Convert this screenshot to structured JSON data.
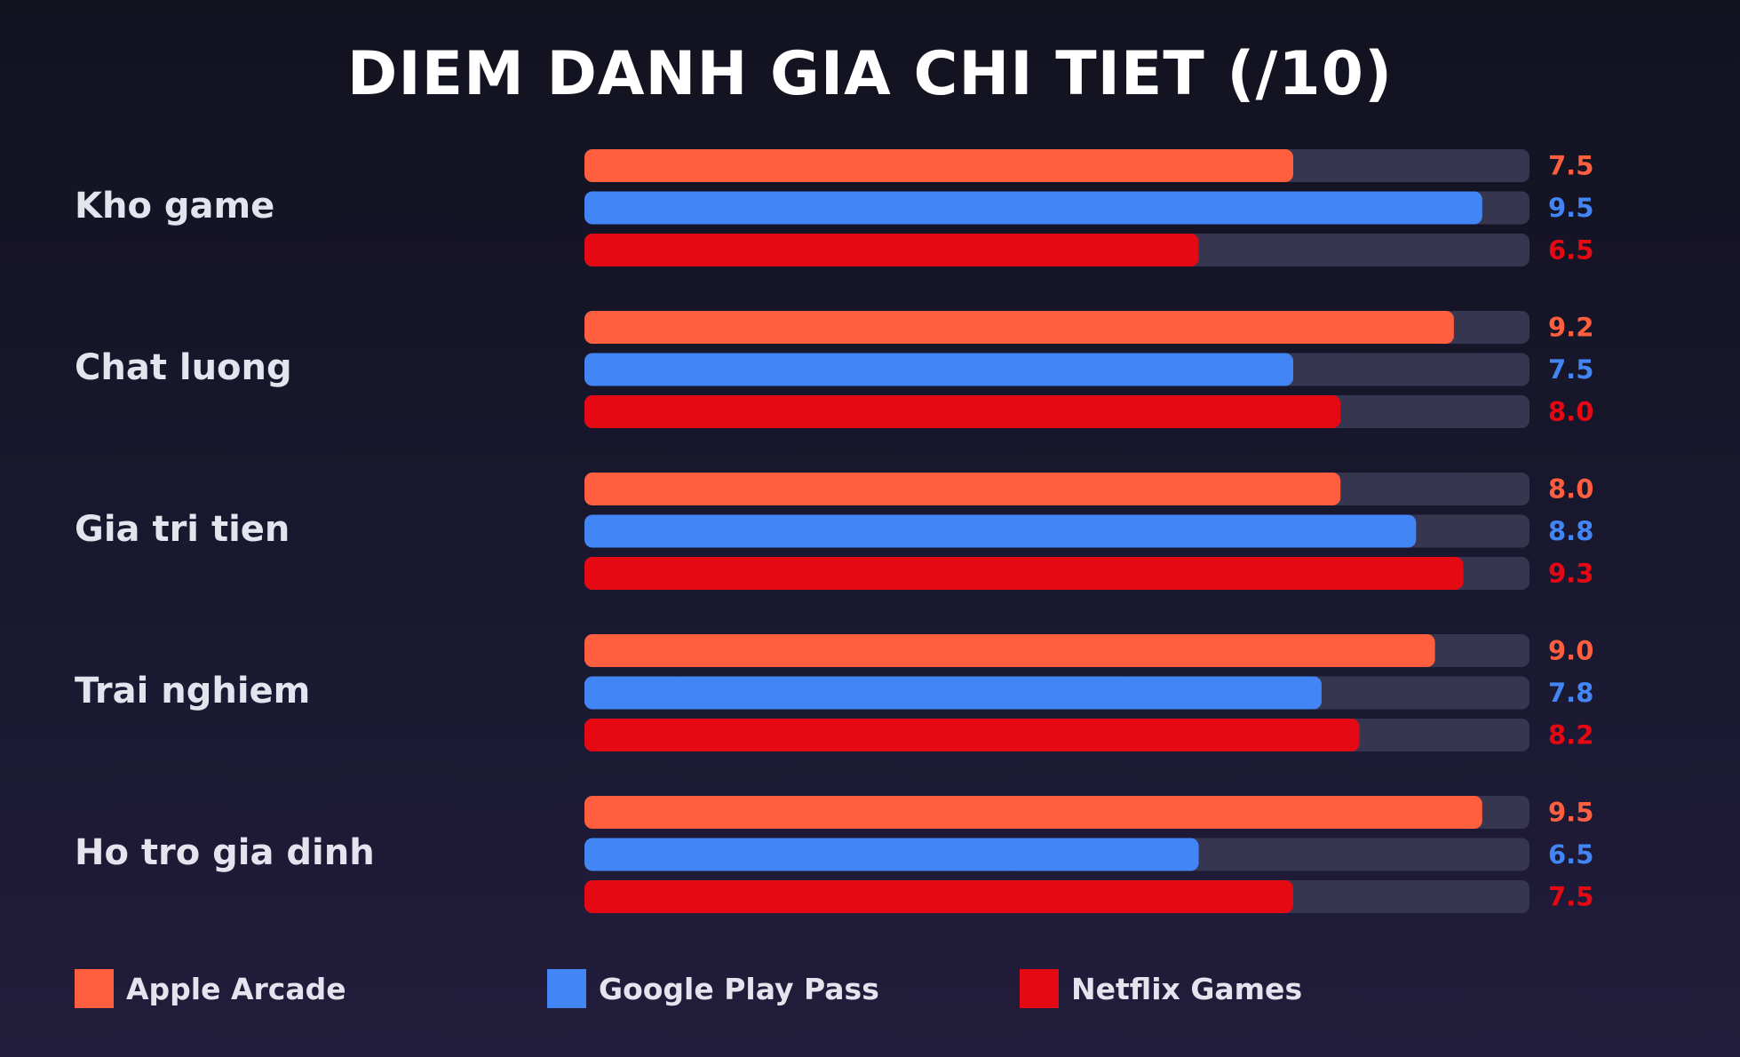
{
  "chart_data": {
    "type": "bar",
    "orientation": "horizontal",
    "title": "DIEM DANH GIA CHI TIET (/10)",
    "xlim": [
      0,
      10
    ],
    "categories": [
      "Kho game",
      "Chat luong",
      "Gia tri tien",
      "Trai nghiem",
      "Ho tro gia dinh"
    ],
    "series": [
      {
        "name": "Apple Arcade",
        "color": "#ff5f3f",
        "values": [
          7.5,
          9.2,
          8.0,
          9.0,
          9.5
        ],
        "labels": [
          "7.5",
          "9.2",
          "8.0",
          "9.0",
          "9.5"
        ]
      },
      {
        "name": "Google Play Pass",
        "color": "#4285f4",
        "values": [
          9.5,
          7.5,
          8.8,
          7.8,
          6.5
        ],
        "labels": [
          "9.5",
          "7.5",
          "8.8",
          "7.8",
          "6.5"
        ]
      },
      {
        "name": "Netflix Games",
        "color": "#e50914",
        "values": [
          6.5,
          8.0,
          9.3,
          8.2,
          7.5
        ],
        "labels": [
          "6.5",
          "8.0",
          "9.3",
          "8.2",
          "7.5"
        ]
      }
    ],
    "track_color": "#363650",
    "legend_position": "bottom"
  }
}
